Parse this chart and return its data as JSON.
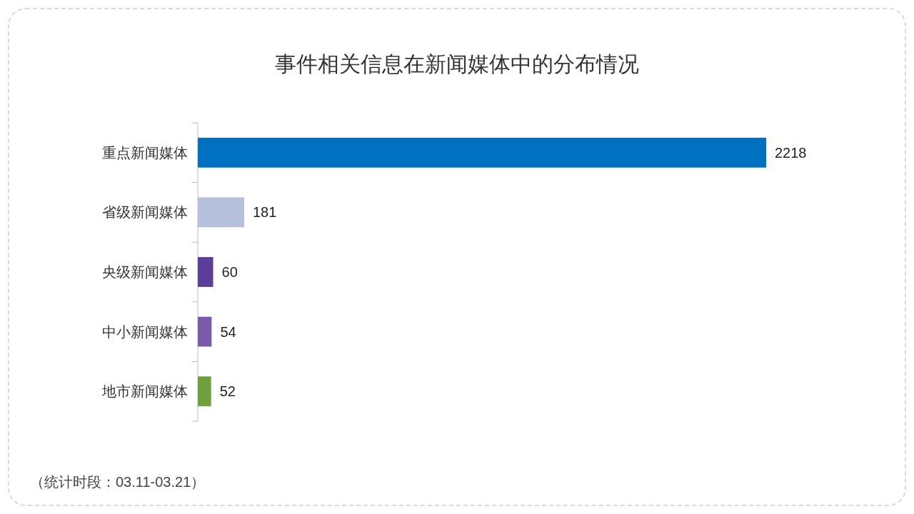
{
  "chart_data": {
    "type": "bar",
    "orientation": "horizontal",
    "title": "事件相关信息在新闻媒体中的分布情况",
    "categories": [
      "重点新闻媒体",
      "省级新闻媒体",
      "央级新闻媒体",
      "中小新闻媒体",
      "地市新闻媒体"
    ],
    "values": [
      2218,
      181,
      60,
      54,
      52
    ],
    "colors": [
      "#0070c0",
      "#b4c0dc",
      "#5b3d9c",
      "#7a5aaa",
      "#70a03c"
    ],
    "data_labels": true,
    "annotations": [
      "（统计时段：03.11-03.21）"
    ]
  }
}
